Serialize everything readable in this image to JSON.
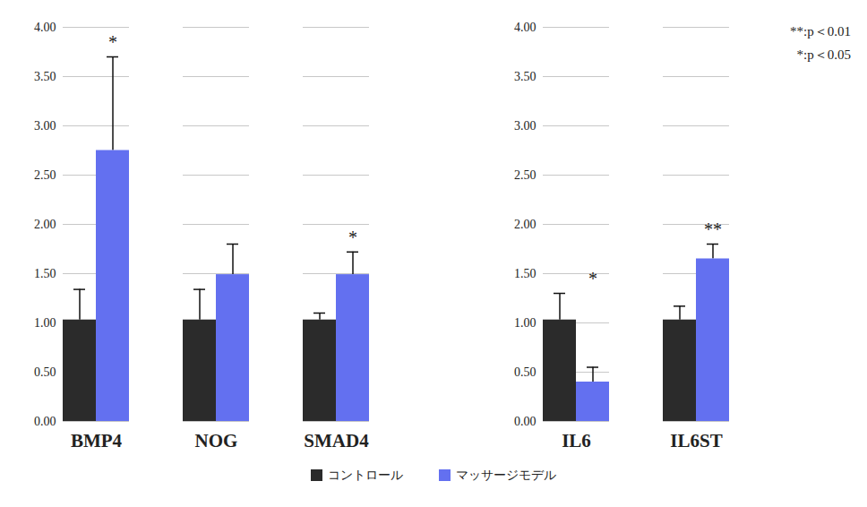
{
  "chart_data": {
    "type": "bar",
    "categories": [
      "BMP4",
      "NOG",
      "SMAD4",
      null,
      "IL6",
      "IL6ST",
      null
    ],
    "series": [
      {
        "name": "コントロール",
        "color": "#2b2b2b",
        "values": [
          1.03,
          1.03,
          1.03,
          null,
          1.03,
          1.03,
          null
        ],
        "errors": [
          0.31,
          0.31,
          0.07,
          null,
          0.27,
          0.14,
          null
        ]
      },
      {
        "name": "マッサージモデル",
        "color": "#6370f0",
        "values": [
          2.75,
          1.49,
          1.49,
          null,
          0.4,
          1.65,
          null
        ],
        "errors": [
          0.95,
          0.31,
          0.23,
          null,
          0.15,
          0.15,
          null
        ]
      }
    ],
    "significance": [
      "*",
      null,
      "*",
      null,
      "*",
      "**",
      null
    ],
    "annotations": [
      "**:p＜0.01",
      "*:p＜0.05"
    ],
    "ylim": [
      0,
      4
    ],
    "yticks": [
      {
        "value": 0,
        "label": "0.00"
      },
      {
        "value": 0.5,
        "label": "0.50"
      },
      {
        "value": 1,
        "label": "1.00"
      },
      {
        "value": 1.5,
        "label": "1.50"
      },
      {
        "value": 2,
        "label": "2.00"
      },
      {
        "value": 2.5,
        "label": "2.50"
      },
      {
        "value": 3,
        "label": "3.00"
      },
      {
        "value": 3.5,
        "label": "3.50"
      },
      {
        "value": 4,
        "label": "4.00"
      }
    ],
    "grid": true,
    "legend": "bottom"
  }
}
